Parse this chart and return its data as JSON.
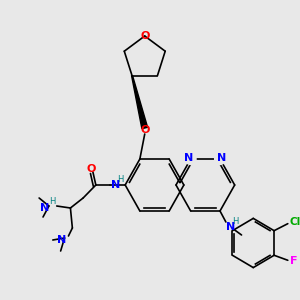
{
  "bg_color": "#e8e8e8",
  "atom_colors": {
    "N": "#0000ff",
    "O": "#ff0000",
    "Cl": "#00aa00",
    "F": "#ff00ff",
    "H": "#008080",
    "C": "#000000"
  },
  "bond_color": "#000000"
}
